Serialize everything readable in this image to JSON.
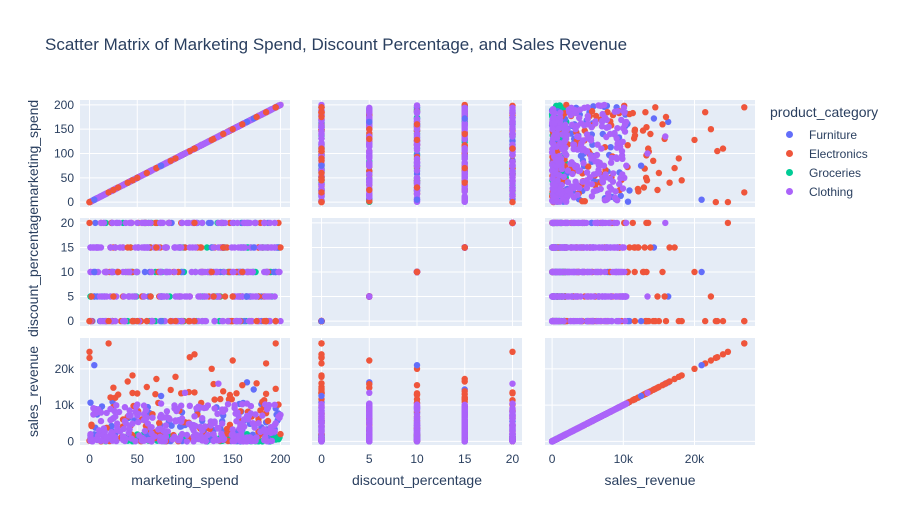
{
  "chart_data": {
    "type": "scatter",
    "subtype": "scatter_matrix",
    "title": "Scatter Matrix of Marketing Spend, Discount Percentage, and Sales Revenue",
    "legend_title": "product_category",
    "legend_placement": "right",
    "grid": true,
    "dimensions": [
      {
        "name": "marketing_spend",
        "range": [
          -10,
          210
        ],
        "ticks": [
          0,
          50,
          100,
          150,
          200
        ],
        "tick_labels": [
          "0",
          "50",
          "100",
          "150",
          "200"
        ]
      },
      {
        "name": "discount_percentage",
        "range": [
          -1,
          21
        ],
        "ticks": [
          0,
          5,
          10,
          15,
          20
        ],
        "tick_labels": [
          "0",
          "5",
          "10",
          "15",
          "20"
        ]
      },
      {
        "name": "sales_revenue",
        "range": [
          -1000,
          28500
        ],
        "ticks": [
          0,
          10000,
          20000
        ],
        "tick_labels": [
          "0",
          "10k",
          "20k"
        ]
      }
    ],
    "series": [
      {
        "name": "Furniture",
        "color": "#636efa"
      },
      {
        "name": "Electronics",
        "color": "#ef553b"
      },
      {
        "name": "Groceries",
        "color": "#00cc96"
      },
      {
        "name": "Clothing",
        "color": "#ab63fa"
      }
    ],
    "discount_levels": [
      0,
      5,
      10,
      15,
      20
    ],
    "marketing_spend_range": [
      0,
      200
    ],
    "bulk_revenue_max": {
      "Clothing": 10500,
      "Furniture": 11000,
      "Groceries": 2000,
      "Electronics": 14000
    },
    "outliers": [
      {
        "category": "Electronics",
        "marketing_spend": 20,
        "discount_percentage": 0,
        "sales_revenue": 27000
      },
      {
        "category": "Electronics",
        "marketing_spend": 195,
        "discount_percentage": 0,
        "sales_revenue": 27000
      },
      {
        "category": "Electronics",
        "marketing_spend": 0,
        "discount_percentage": 20,
        "sales_revenue": 24700
      },
      {
        "category": "Electronics",
        "marketing_spend": 0,
        "discount_percentage": 0,
        "sales_revenue": 23000
      },
      {
        "category": "Electronics",
        "marketing_spend": 110,
        "discount_percentage": 0,
        "sales_revenue": 24000
      },
      {
        "category": "Electronics",
        "marketing_spend": 150,
        "discount_percentage": 5,
        "sales_revenue": 22300
      },
      {
        "category": "Electronics",
        "marketing_spend": 105,
        "discount_percentage": 0,
        "sales_revenue": 23200
      },
      {
        "category": "Electronics",
        "marketing_spend": 185,
        "discount_percentage": 0,
        "sales_revenue": 21500
      },
      {
        "category": "Electronics",
        "marketing_spend": 128,
        "discount_percentage": 10,
        "sales_revenue": 20000
      },
      {
        "category": "Furniture",
        "marketing_spend": 5,
        "discount_percentage": 10,
        "sales_revenue": 21000
      },
      {
        "category": "Electronics",
        "marketing_spend": 45,
        "discount_percentage": 0,
        "sales_revenue": 18200
      },
      {
        "category": "Electronics",
        "marketing_spend": 90,
        "discount_percentage": 0,
        "sales_revenue": 17800
      },
      {
        "category": "Furniture",
        "marketing_spend": 165,
        "discount_percentage": 5,
        "sales_revenue": 16300
      },
      {
        "category": "Electronics",
        "marketing_spend": 70,
        "discount_percentage": 15,
        "sales_revenue": 17200
      },
      {
        "category": "Electronics",
        "marketing_spend": 130,
        "discount_percentage": 5,
        "sales_revenue": 15800
      },
      {
        "category": "Clothing",
        "marketing_spend": 135,
        "discount_percentage": 20,
        "sales_revenue": 15900
      },
      {
        "category": "Electronics",
        "marketing_spend": 40,
        "discount_percentage": 15,
        "sales_revenue": 16500
      },
      {
        "category": "Furniture",
        "marketing_spend": 172,
        "discount_percentage": 15,
        "sales_revenue": 14300
      },
      {
        "category": "Electronics",
        "marketing_spend": 175,
        "discount_percentage": 0,
        "sales_revenue": 16000
      },
      {
        "category": "Electronics",
        "marketing_spend": 160,
        "discount_percentage": 10,
        "sales_revenue": 15500
      },
      {
        "category": "Electronics",
        "marketing_spend": 60,
        "discount_percentage": 0,
        "sales_revenue": 15000
      },
      {
        "category": "Electronics",
        "marketing_spend": 195,
        "discount_percentage": 0,
        "sales_revenue": 14500
      },
      {
        "category": "Electronics",
        "marketing_spend": 25,
        "discount_percentage": 5,
        "sales_revenue": 14800
      },
      {
        "category": "Electronics",
        "marketing_spend": 85,
        "discount_percentage": 0,
        "sales_revenue": 14200
      },
      {
        "category": "Electronics",
        "marketing_spend": 140,
        "discount_percentage": 15,
        "sales_revenue": 13800
      },
      {
        "category": "Electronics",
        "marketing_spend": 110,
        "discount_percentage": 20,
        "sales_revenue": 13500
      },
      {
        "category": "Electronics",
        "marketing_spend": 50,
        "discount_percentage": 0,
        "sales_revenue": 13200
      },
      {
        "category": "Electronics",
        "marketing_spend": 30,
        "discount_percentage": 10,
        "sales_revenue": 12900
      },
      {
        "category": "Clothing",
        "marketing_spend": 100,
        "discount_percentage": 5,
        "sales_revenue": 13400
      },
      {
        "category": "Furniture",
        "marketing_spend": 75,
        "discount_percentage": 0,
        "sales_revenue": 12500
      }
    ]
  }
}
